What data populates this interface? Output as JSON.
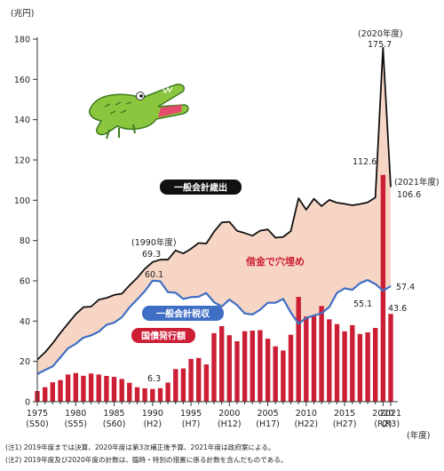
{
  "chart_data": {
    "type": "bar+line",
    "ylabel": "(兆円)",
    "xlabel": "(年度)",
    "ylim": [
      0,
      180
    ],
    "yticks": [
      0,
      20,
      40,
      60,
      80,
      100,
      120,
      140,
      160,
      180
    ],
    "x": [
      1975,
      1976,
      1977,
      1978,
      1979,
      1980,
      1981,
      1982,
      1983,
      1984,
      1985,
      1986,
      1987,
      1988,
      1989,
      1990,
      1991,
      1992,
      1993,
      1994,
      1995,
      1996,
      1997,
      1998,
      1999,
      2000,
      2001,
      2002,
      2003,
      2004,
      2005,
      2006,
      2007,
      2008,
      2009,
      2010,
      2011,
      2012,
      2013,
      2014,
      2015,
      2016,
      2017,
      2018,
      2019,
      2020,
      2021
    ],
    "xticks": [
      {
        "year": 1975,
        "line1": "1975",
        "line2": "(S50)"
      },
      {
        "year": 1980,
        "line1": "1980",
        "line2": "(S55)"
      },
      {
        "year": 1985,
        "line1": "1985",
        "line2": "(S60)"
      },
      {
        "year": 1990,
        "line1": "1990",
        "line2": "(H2)"
      },
      {
        "year": 1995,
        "line1": "1995",
        "line2": "(H7)"
      },
      {
        "year": 2000,
        "line1": "2000",
        "line2": "(H12)"
      },
      {
        "year": 2005,
        "line1": "2005",
        "line2": "(H17)"
      },
      {
        "year": 2010,
        "line1": "2010",
        "line2": "(H22)"
      },
      {
        "year": 2015,
        "line1": "2015",
        "line2": "(H27)"
      },
      {
        "year": 2020,
        "line1": "2020",
        "line2": "(R2)"
      },
      {
        "year": 2021,
        "line1": "2021",
        "line2": "(R3)"
      }
    ],
    "series": [
      {
        "name": "一般会計歳出",
        "kind": "line",
        "color": "#111111",
        "values": [
          20.9,
          24.5,
          29.0,
          34.1,
          38.8,
          43.4,
          46.9,
          47.2,
          50.6,
          51.5,
          53.0,
          53.6,
          57.7,
          61.5,
          65.9,
          69.3,
          70.5,
          70.5,
          75.1,
          73.6,
          75.9,
          78.8,
          78.5,
          84.4,
          89.0,
          89.3,
          84.8,
          83.7,
          82.4,
          84.9,
          85.5,
          81.4,
          81.8,
          84.7,
          101.0,
          95.3,
          100.7,
          97.1,
          100.2,
          98.8,
          98.2,
          97.5,
          98.1,
          98.9,
          101.4,
          175.7,
          106.6
        ]
      },
      {
        "name": "一般会計税収",
        "kind": "line",
        "color": "#3f6fc4",
        "values": [
          13.7,
          15.7,
          17.5,
          22.0,
          26.5,
          28.7,
          31.8,
          32.9,
          34.7,
          38.1,
          39.2,
          41.9,
          46.8,
          50.8,
          54.9,
          60.1,
          59.8,
          54.4,
          54.1,
          51.0,
          51.9,
          52.1,
          53.9,
          49.4,
          47.2,
          50.7,
          47.9,
          43.8,
          43.3,
          45.6,
          49.1,
          49.1,
          51.0,
          44.3,
          38.7,
          41.5,
          42.8,
          43.9,
          47.0,
          54.0,
          56.3,
          55.5,
          58.8,
          60.4,
          58.4,
          55.1,
          57.4
        ]
      },
      {
        "name": "国債発行額",
        "kind": "bar",
        "color": "#cc1f36",
        "values": [
          5.3,
          7.2,
          9.6,
          10.7,
          13.5,
          14.2,
          12.9,
          14.0,
          13.5,
          12.8,
          12.3,
          11.3,
          9.4,
          7.2,
          6.6,
          6.3,
          6.7,
          9.5,
          16.2,
          16.5,
          21.2,
          21.7,
          18.5,
          34.0,
          37.5,
          33.0,
          30.0,
          35.0,
          35.3,
          35.5,
          31.3,
          27.5,
          25.4,
          33.2,
          52.0,
          42.3,
          42.8,
          47.5,
          40.9,
          38.5,
          34.9,
          38.0,
          33.6,
          34.4,
          36.6,
          112.6,
          43.6
        ]
      }
    ],
    "fill_label": "借金で穴埋め",
    "annotations": {
      "y1990_year": "(1990年度)",
      "y1990_spend": "69.3",
      "y1990_tax": "60.1",
      "y1990_bond": "6.3",
      "y2020_year": "(2020年度)",
      "y2020_spend": "175.7",
      "y2020_bond": "112.6",
      "y2020_tax": "55.1",
      "y2021_year": "(2021年度)",
      "y2021_spend": "106.6",
      "y2021_tax": "57.4",
      "y2021_bond": "43.6"
    },
    "colors": {
      "fill": "#f7d5c4",
      "spend_line": "#111111",
      "tax_line": "#3f6fc4",
      "bond_bar": "#cc1f36",
      "fill_text": "#cc1f36"
    }
  },
  "notes": [
    "(注1) 2019年度までは決算、2020年度は第3次補正後予算、2021年度は政府案による。",
    "(注2) 2019年度及び2020年度の計数は、臨時・特別の措置に係る計数を含んだものである。"
  ]
}
